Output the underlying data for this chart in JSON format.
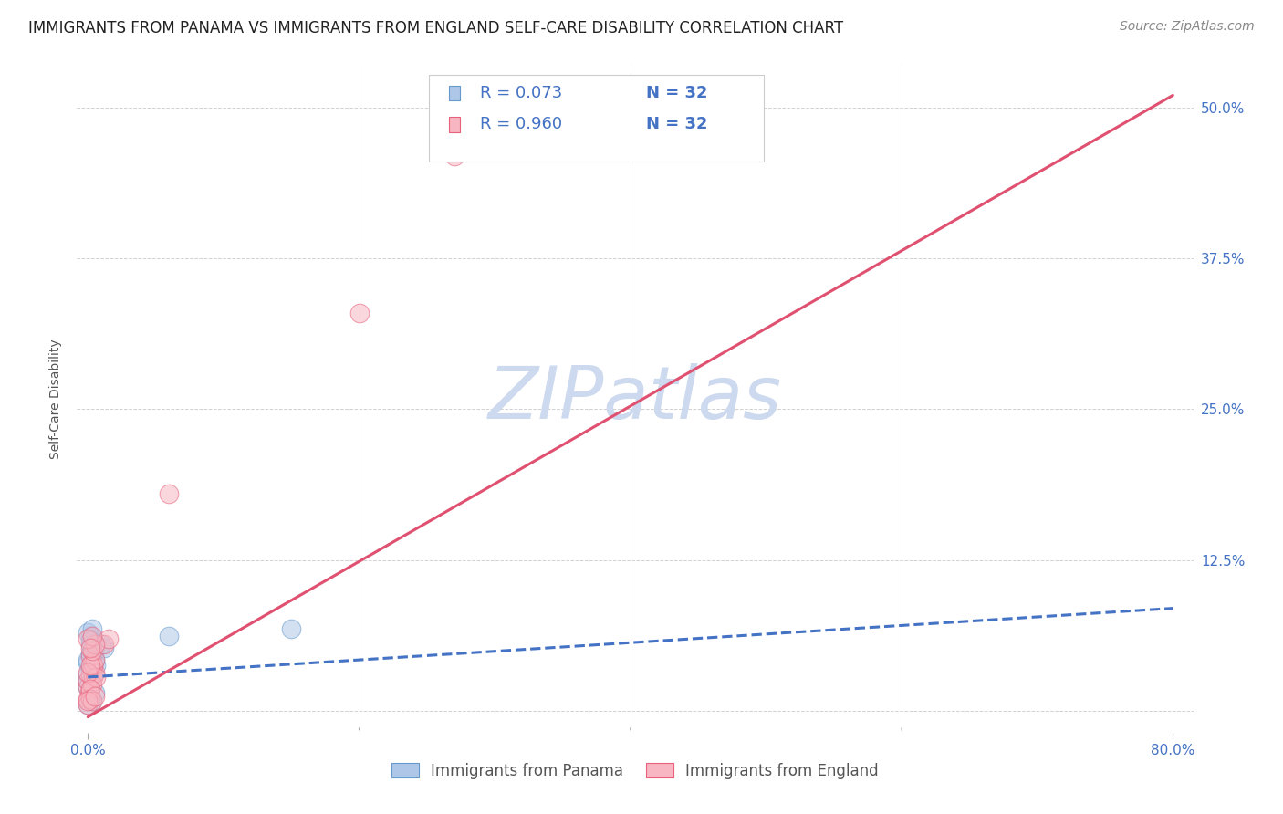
{
  "title": "IMMIGRANTS FROM PANAMA VS IMMIGRANTS FROM ENGLAND SELF-CARE DISABILITY CORRELATION CHART",
  "source": "Source: ZipAtlas.com",
  "ylabel_label": "Self-Care Disability",
  "xlim": [
    0.0,
    0.8
  ],
  "ylim": [
    0.0,
    0.52
  ],
  "legend1_R": "R = 0.073",
  "legend1_N": "N = 32",
  "legend2_R": "R = 0.960",
  "legend2_N": "N = 32",
  "panama_color": "#aec7e8",
  "panama_edge_color": "#6699cc",
  "england_color": "#f7b6c2",
  "england_edge_color": "#e8607a",
  "panama_line_color": "#4472c4",
  "england_line_color": "#e05070",
  "watermark_text_color": "#ccd9ee",
  "background_color": "#ffffff",
  "tick_color": "#4472c4",
  "label_color": "#555555",
  "title_fontsize": 12,
  "tick_fontsize": 11,
  "legend_fontsize": 13,
  "source_fontsize": 10,
  "panama_x": [
    0.0,
    0.0,
    0.002,
    0.003,
    0.004,
    0.005,
    0.003,
    0.004,
    0.002,
    0.005,
    0.001,
    0.003,
    0.006,
    0.0,
    0.002,
    0.003,
    0.004,
    0.002,
    0.0,
    0.003,
    0.012,
    0.01,
    0.06,
    0.0,
    0.005,
    0.002,
    0.003,
    0.0,
    0.003,
    0.002,
    0.15,
    0.0
  ],
  "panama_y": [
    0.03,
    0.04,
    0.035,
    0.045,
    0.038,
    0.042,
    0.05,
    0.048,
    0.055,
    0.052,
    0.022,
    0.028,
    0.038,
    0.042,
    0.048,
    0.06,
    0.058,
    0.062,
    0.025,
    0.03,
    0.052,
    0.055,
    0.062,
    0.02,
    0.015,
    0.01,
    0.008,
    0.065,
    0.068,
    0.058,
    0.068,
    0.005
  ],
  "england_x": [
    0.0,
    0.0,
    0.002,
    0.003,
    0.004,
    0.005,
    0.003,
    0.004,
    0.002,
    0.005,
    0.001,
    0.003,
    0.006,
    0.0,
    0.002,
    0.003,
    0.06,
    0.0,
    0.002,
    0.012,
    0.015,
    0.2,
    0.0,
    0.005,
    0.002,
    0.003,
    0.0,
    0.003,
    0.002,
    0.27,
    0.0,
    0.005
  ],
  "england_y": [
    0.02,
    0.025,
    0.03,
    0.035,
    0.028,
    0.032,
    0.04,
    0.038,
    0.045,
    0.042,
    0.015,
    0.022,
    0.028,
    0.032,
    0.038,
    0.05,
    0.18,
    0.01,
    0.018,
    0.055,
    0.06,
    0.33,
    0.005,
    0.055,
    0.01,
    0.008,
    0.06,
    0.062,
    0.052,
    0.46,
    0.008,
    0.012
  ],
  "england_line_x0": 0.0,
  "england_line_y0": -0.005,
  "england_line_x1": 0.8,
  "england_line_y1": 0.51,
  "panama_line_x0": 0.0,
  "panama_line_y0": 0.028,
  "panama_line_x1": 0.8,
  "panama_line_y1": 0.085,
  "yticks": [
    0.0,
    0.125,
    0.25,
    0.375,
    0.5
  ],
  "ytick_labels": [
    "",
    "12.5%",
    "25.0%",
    "37.5%",
    "50.0%"
  ],
  "xticks": [
    0.0,
    0.8
  ],
  "xtick_labels": [
    "0.0%",
    "80.0%"
  ]
}
